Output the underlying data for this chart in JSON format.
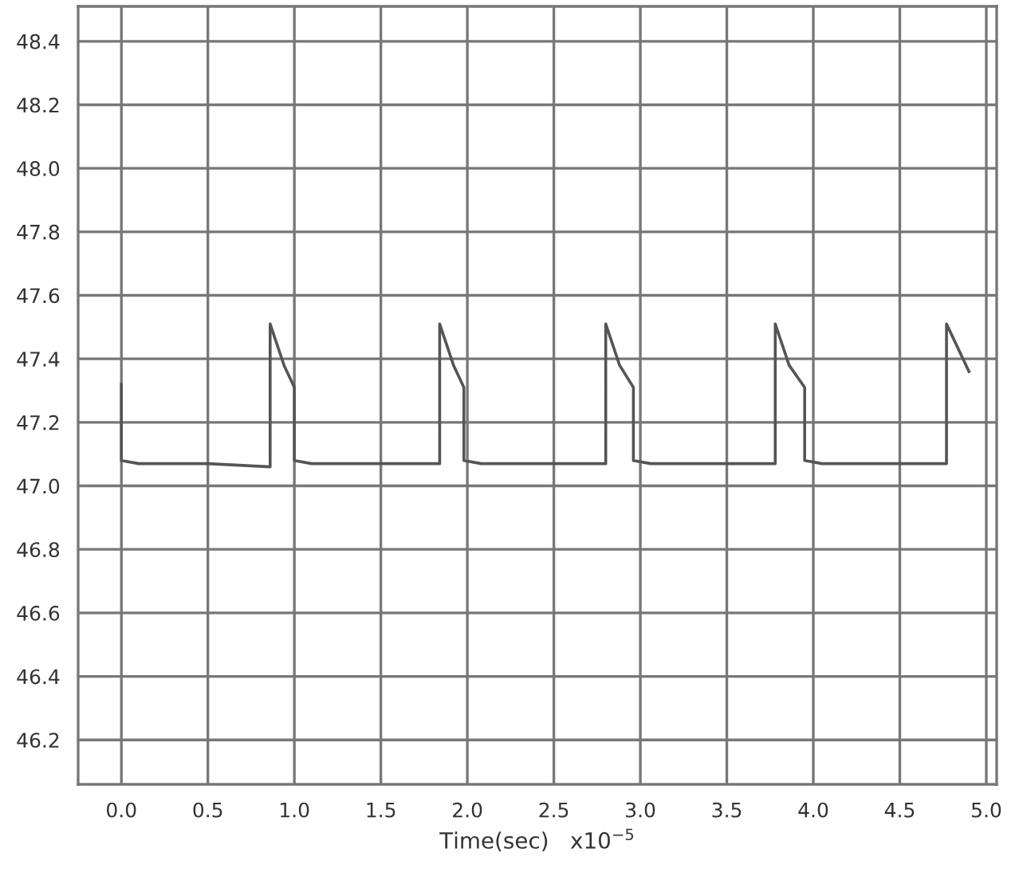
{
  "chart_data": {
    "type": "line",
    "xlabel": "Time(sec)   x10$^{−5}$",
    "series": [
      {
        "color": "#555555",
        "x": [
          0,
          0,
          0.1,
          0.5,
          0.86,
          0.86,
          0.94,
          1.0,
          1.0,
          1.1,
          1.84,
          1.84,
          1.92,
          1.98,
          1.98,
          2.08,
          2.8,
          2.8,
          2.88,
          2.96,
          2.96,
          3.06,
          3.78,
          3.78,
          3.86,
          3.95,
          3.95,
          4.05,
          4.77,
          4.77,
          4.9
        ],
        "values": [
          47.32,
          47.08,
          47.07,
          47.07,
          47.06,
          47.51,
          47.38,
          47.31,
          47.08,
          47.07,
          47.07,
          47.51,
          47.38,
          47.31,
          47.08,
          47.07,
          47.07,
          47.51,
          47.38,
          47.31,
          47.08,
          47.07,
          47.07,
          47.51,
          47.38,
          47.31,
          47.08,
          47.07,
          47.07,
          47.51,
          47.36
        ]
      }
    ],
    "xlim": [
      -0.25,
      5.06
    ],
    "ylim": [
      46.06,
      48.51
    ],
    "xticks": [
      {
        "value": 0,
        "label": "0.0"
      },
      {
        "value": 0.5,
        "label": "0.5"
      },
      {
        "value": 1,
        "label": "1.0"
      },
      {
        "value": 1.5,
        "label": "1.5"
      },
      {
        "value": 2,
        "label": "2.0"
      },
      {
        "value": 2.5,
        "label": "2.5"
      },
      {
        "value": 3,
        "label": "3.0"
      },
      {
        "value": 3.5,
        "label": "3.5"
      },
      {
        "value": 4,
        "label": "4.0"
      },
      {
        "value": 4.5,
        "label": "4.5"
      },
      {
        "value": 5,
        "label": "5.0"
      }
    ],
    "yticks": [
      46.2,
      46.4,
      46.6,
      46.8,
      {
        "value": 47,
        "label": "47.0"
      },
      47.2,
      47.4,
      47.6,
      47.8,
      {
        "value": 48,
        "label": "48.0"
      },
      48.2,
      48.4
    ],
    "grid": true,
    "marker": "none",
    "line_style": "solid"
  }
}
